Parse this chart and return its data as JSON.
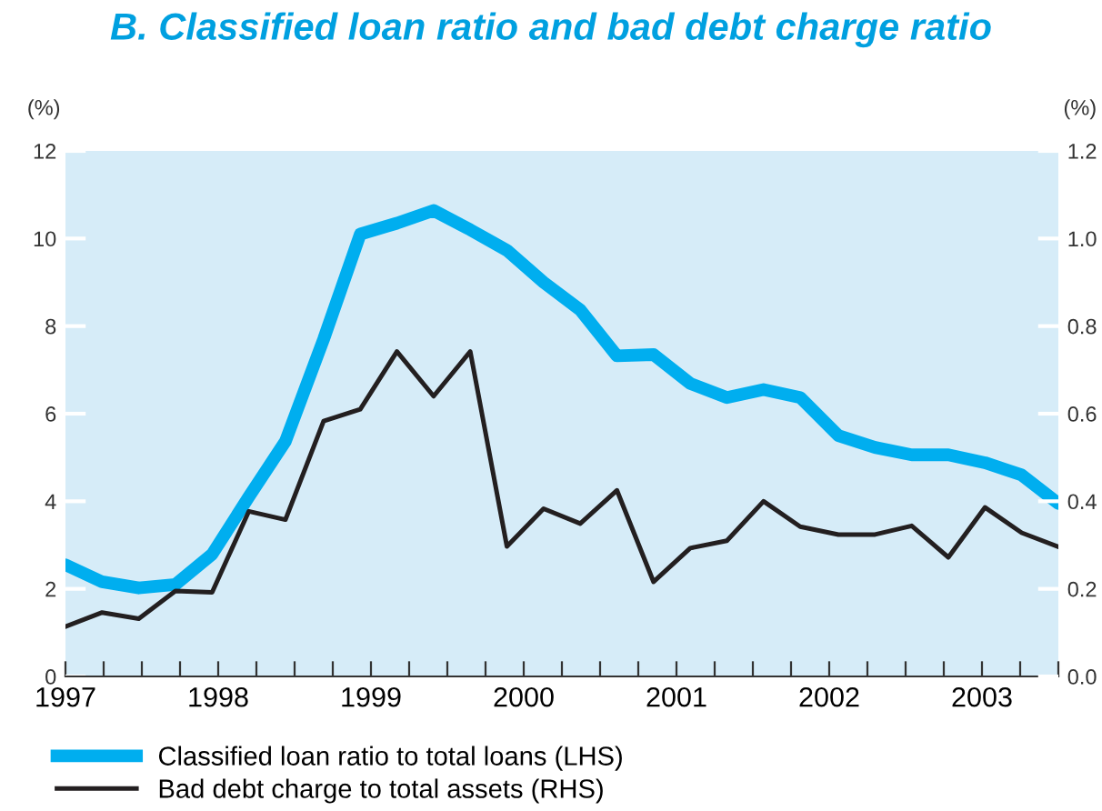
{
  "chart_data": {
    "type": "line",
    "title": "B. Classified loan ratio and bad debt charge ratio",
    "ylabel": "(%)",
    "y2label": "(%)",
    "x": [
      1997.0,
      1997.24,
      1997.48,
      1997.72,
      1997.96,
      1998.2,
      1998.44,
      1998.69,
      1998.93,
      1999.17,
      1999.41,
      1999.65,
      1999.89,
      2000.13,
      2000.37,
      2000.61,
      2000.85,
      2001.09,
      2001.33,
      2001.57,
      2001.81,
      2002.06,
      2002.3,
      2002.54,
      2002.78,
      2003.02,
      2003.26,
      2003.5
    ],
    "series": [
      {
        "name": "Classified loan ratio to total loans (LHS)",
        "color": "#00aeef",
        "axis": "y",
        "values": [
          2.55,
          2.16,
          2.02,
          2.1,
          2.79,
          4.1,
          5.37,
          7.7,
          10.1,
          10.35,
          10.64,
          10.2,
          9.73,
          9.0,
          8.37,
          7.32,
          7.35,
          6.69,
          6.37,
          6.55,
          6.37,
          5.5,
          5.23,
          5.06,
          5.06,
          4.88,
          4.6,
          3.95
        ]
      },
      {
        "name": "Bad debt charge to total assets (RHS)",
        "color": "#231f20",
        "axis": "y2",
        "values": [
          0.114,
          0.146,
          0.132,
          0.195,
          0.192,
          0.377,
          0.358,
          0.583,
          0.61,
          0.742,
          0.64,
          0.742,
          0.297,
          0.383,
          0.349,
          0.425,
          0.216,
          0.293,
          0.31,
          0.4,
          0.342,
          0.324,
          0.324,
          0.344,
          0.272,
          0.386,
          0.328,
          0.296
        ]
      }
    ],
    "xlim": [
      1997,
      2003.5
    ],
    "xticks": [
      1997,
      {
        "value": 1997.25,
        "label": null
      },
      {
        "value": 1997.5,
        "label": null
      },
      {
        "value": 1997.75,
        "label": null
      },
      1998,
      {
        "value": 1998.25,
        "label": null
      },
      {
        "value": 1998.5,
        "label": null
      },
      {
        "value": 1998.75,
        "label": null
      },
      1999,
      {
        "value": 1999.25,
        "label": null
      },
      {
        "value": 1999.5,
        "label": null
      },
      {
        "value": 1999.75,
        "label": null
      },
      2000,
      {
        "value": 2000.25,
        "label": null
      },
      {
        "value": 2000.5,
        "label": null
      },
      {
        "value": 2000.75,
        "label": null
      },
      2001,
      {
        "value": 2001.25,
        "label": null
      },
      {
        "value": 2001.5,
        "label": null
      },
      {
        "value": 2001.75,
        "label": null
      },
      2002,
      {
        "value": 2002.25,
        "label": null
      },
      {
        "value": 2002.5,
        "label": null
      },
      {
        "value": 2002.75,
        "label": null
      },
      2003,
      {
        "value": 2003.25,
        "label": null
      },
      {
        "value": 2003.5,
        "label": null
      }
    ],
    "ylim": [
      0,
      12
    ],
    "yticks": [
      0,
      2,
      4,
      6,
      8,
      10,
      12
    ],
    "y2lim": [
      0,
      1.2
    ],
    "y2ticks": [
      {
        "value": 0,
        "label": "0.0"
      },
      {
        "value": 0.2,
        "label": "0.2"
      },
      {
        "value": 0.4,
        "label": "0.4"
      },
      {
        "value": 0.6,
        "label": "0.6"
      },
      {
        "value": 0.8,
        "label": "0.8"
      },
      {
        "value": 1.0,
        "label": "1.0"
      },
      {
        "value": 1.2,
        "label": "1.2"
      }
    ],
    "legend": "bottom left",
    "grid": false
  }
}
